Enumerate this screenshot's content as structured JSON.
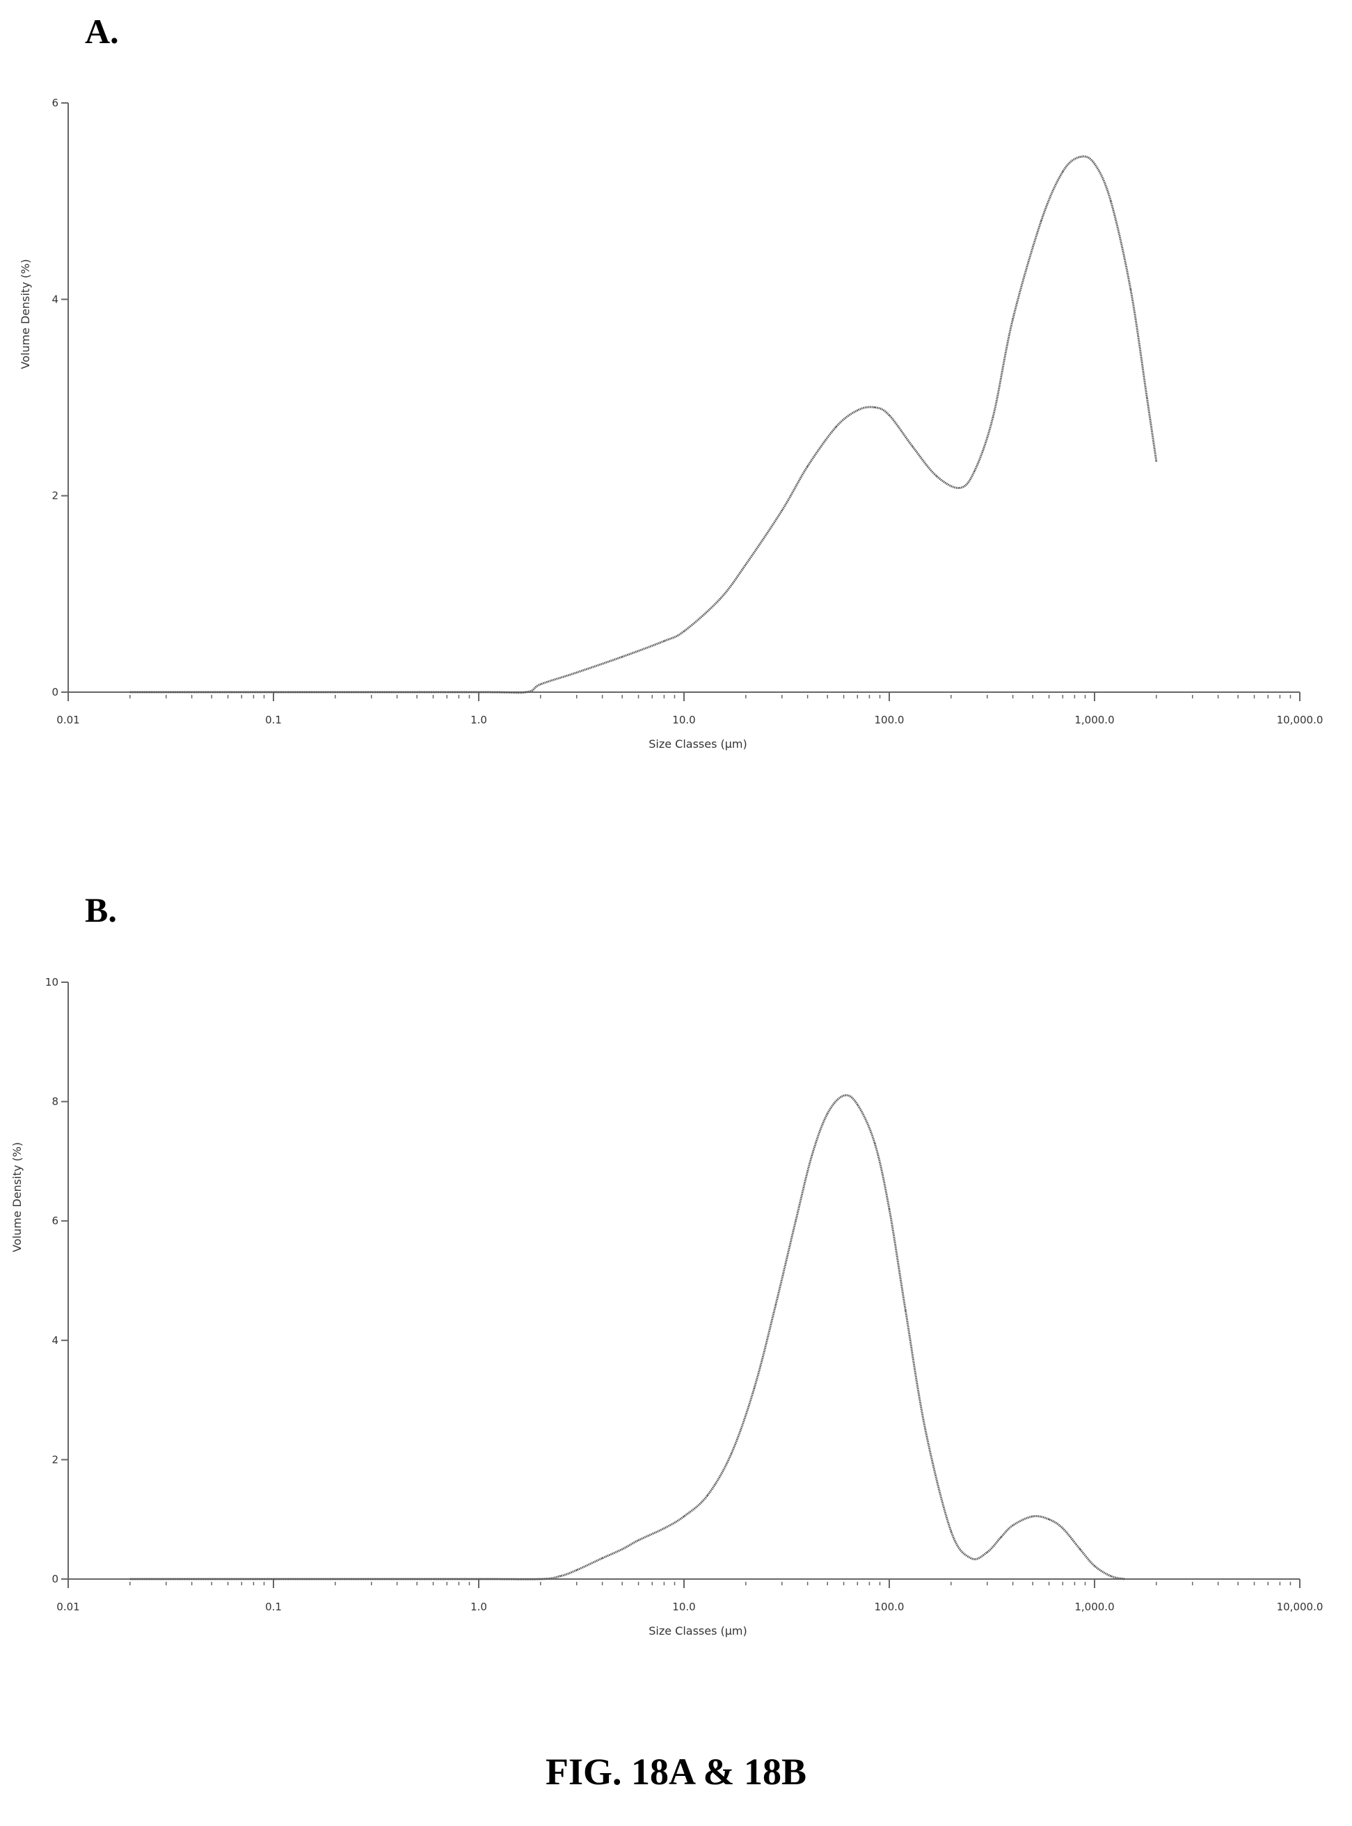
{
  "panels": {
    "a_label": "A.",
    "b_label": "B."
  },
  "caption": "FIG. 18A & 18B",
  "chart_data": [
    {
      "type": "line",
      "panel": "A.",
      "xlabel": "Size Classes (μm)",
      "ylabel": "Volume Density (%)",
      "x_scale": "log",
      "xlim": [
        0.01,
        10000.0
      ],
      "ylim": [
        0,
        6
      ],
      "x_tick_labels": [
        "0.01",
        "0.1",
        "1.0",
        "10.0",
        "100.0",
        "1,000.0",
        "10,000.0"
      ],
      "y_tick_labels": [
        "0",
        "2",
        "4",
        "6"
      ],
      "grid": false,
      "legend": "none",
      "line_color": "#555555",
      "x": [
        0.02,
        0.1,
        1.0,
        1.7,
        2.0,
        3.0,
        5.0,
        8.0,
        10.0,
        15.0,
        20.0,
        30.0,
        40.0,
        55.0,
        70.0,
        85.0,
        100.0,
        130.0,
        170.0,
        220.0,
        260.0,
        320.0,
        400.0,
        550.0,
        700.0,
        850.0,
        1000.0,
        1200.0,
        1500.0,
        1800.0,
        2000.0
      ],
      "y": [
        0.0,
        0.0,
        0.0,
        0.0,
        0.08,
        0.2,
        0.36,
        0.52,
        0.62,
        0.95,
        1.3,
        1.85,
        2.3,
        2.7,
        2.87,
        2.9,
        2.82,
        2.5,
        2.2,
        2.08,
        2.25,
        2.8,
        3.8,
        4.8,
        5.3,
        5.45,
        5.38,
        5.0,
        4.1,
        3.0,
        2.35
      ]
    },
    {
      "type": "line",
      "panel": "B.",
      "xlabel": "Size Classes (μm)",
      "ylabel": "Volume Density (%)",
      "x_scale": "log",
      "xlim": [
        0.01,
        10000.0
      ],
      "ylim": [
        0,
        10
      ],
      "x_tick_labels": [
        "0.01",
        "0.1",
        "1.0",
        "10.0",
        "100.0",
        "1,000.0",
        "10,000.0"
      ],
      "y_tick_labels": [
        "0",
        "2",
        "4",
        "6",
        "8",
        "10"
      ],
      "grid": false,
      "legend": "none",
      "line_color": "#555555",
      "x": [
        0.02,
        0.1,
        1.0,
        2.0,
        2.5,
        3.0,
        4.0,
        5.0,
        6.0,
        8.0,
        10.0,
        13.0,
        17.0,
        22.0,
        28.0,
        35.0,
        42.0,
        50.0,
        60.0,
        70.0,
        85.0,
        100.0,
        120.0,
        150.0,
        200.0,
        250.0,
        300.0,
        350.0,
        400.0,
        500.0,
        600.0,
        700.0,
        850.0,
        1000.0,
        1200.0,
        1400.0
      ],
      "y": [
        0.0,
        0.0,
        0.0,
        0.0,
        0.05,
        0.15,
        0.35,
        0.5,
        0.65,
        0.85,
        1.05,
        1.4,
        2.1,
        3.2,
        4.6,
        6.0,
        7.1,
        7.8,
        8.1,
        7.95,
        7.3,
        6.2,
        4.5,
        2.5,
        0.8,
        0.35,
        0.45,
        0.7,
        0.9,
        1.05,
        1.0,
        0.85,
        0.5,
        0.22,
        0.05,
        0.0
      ]
    }
  ]
}
